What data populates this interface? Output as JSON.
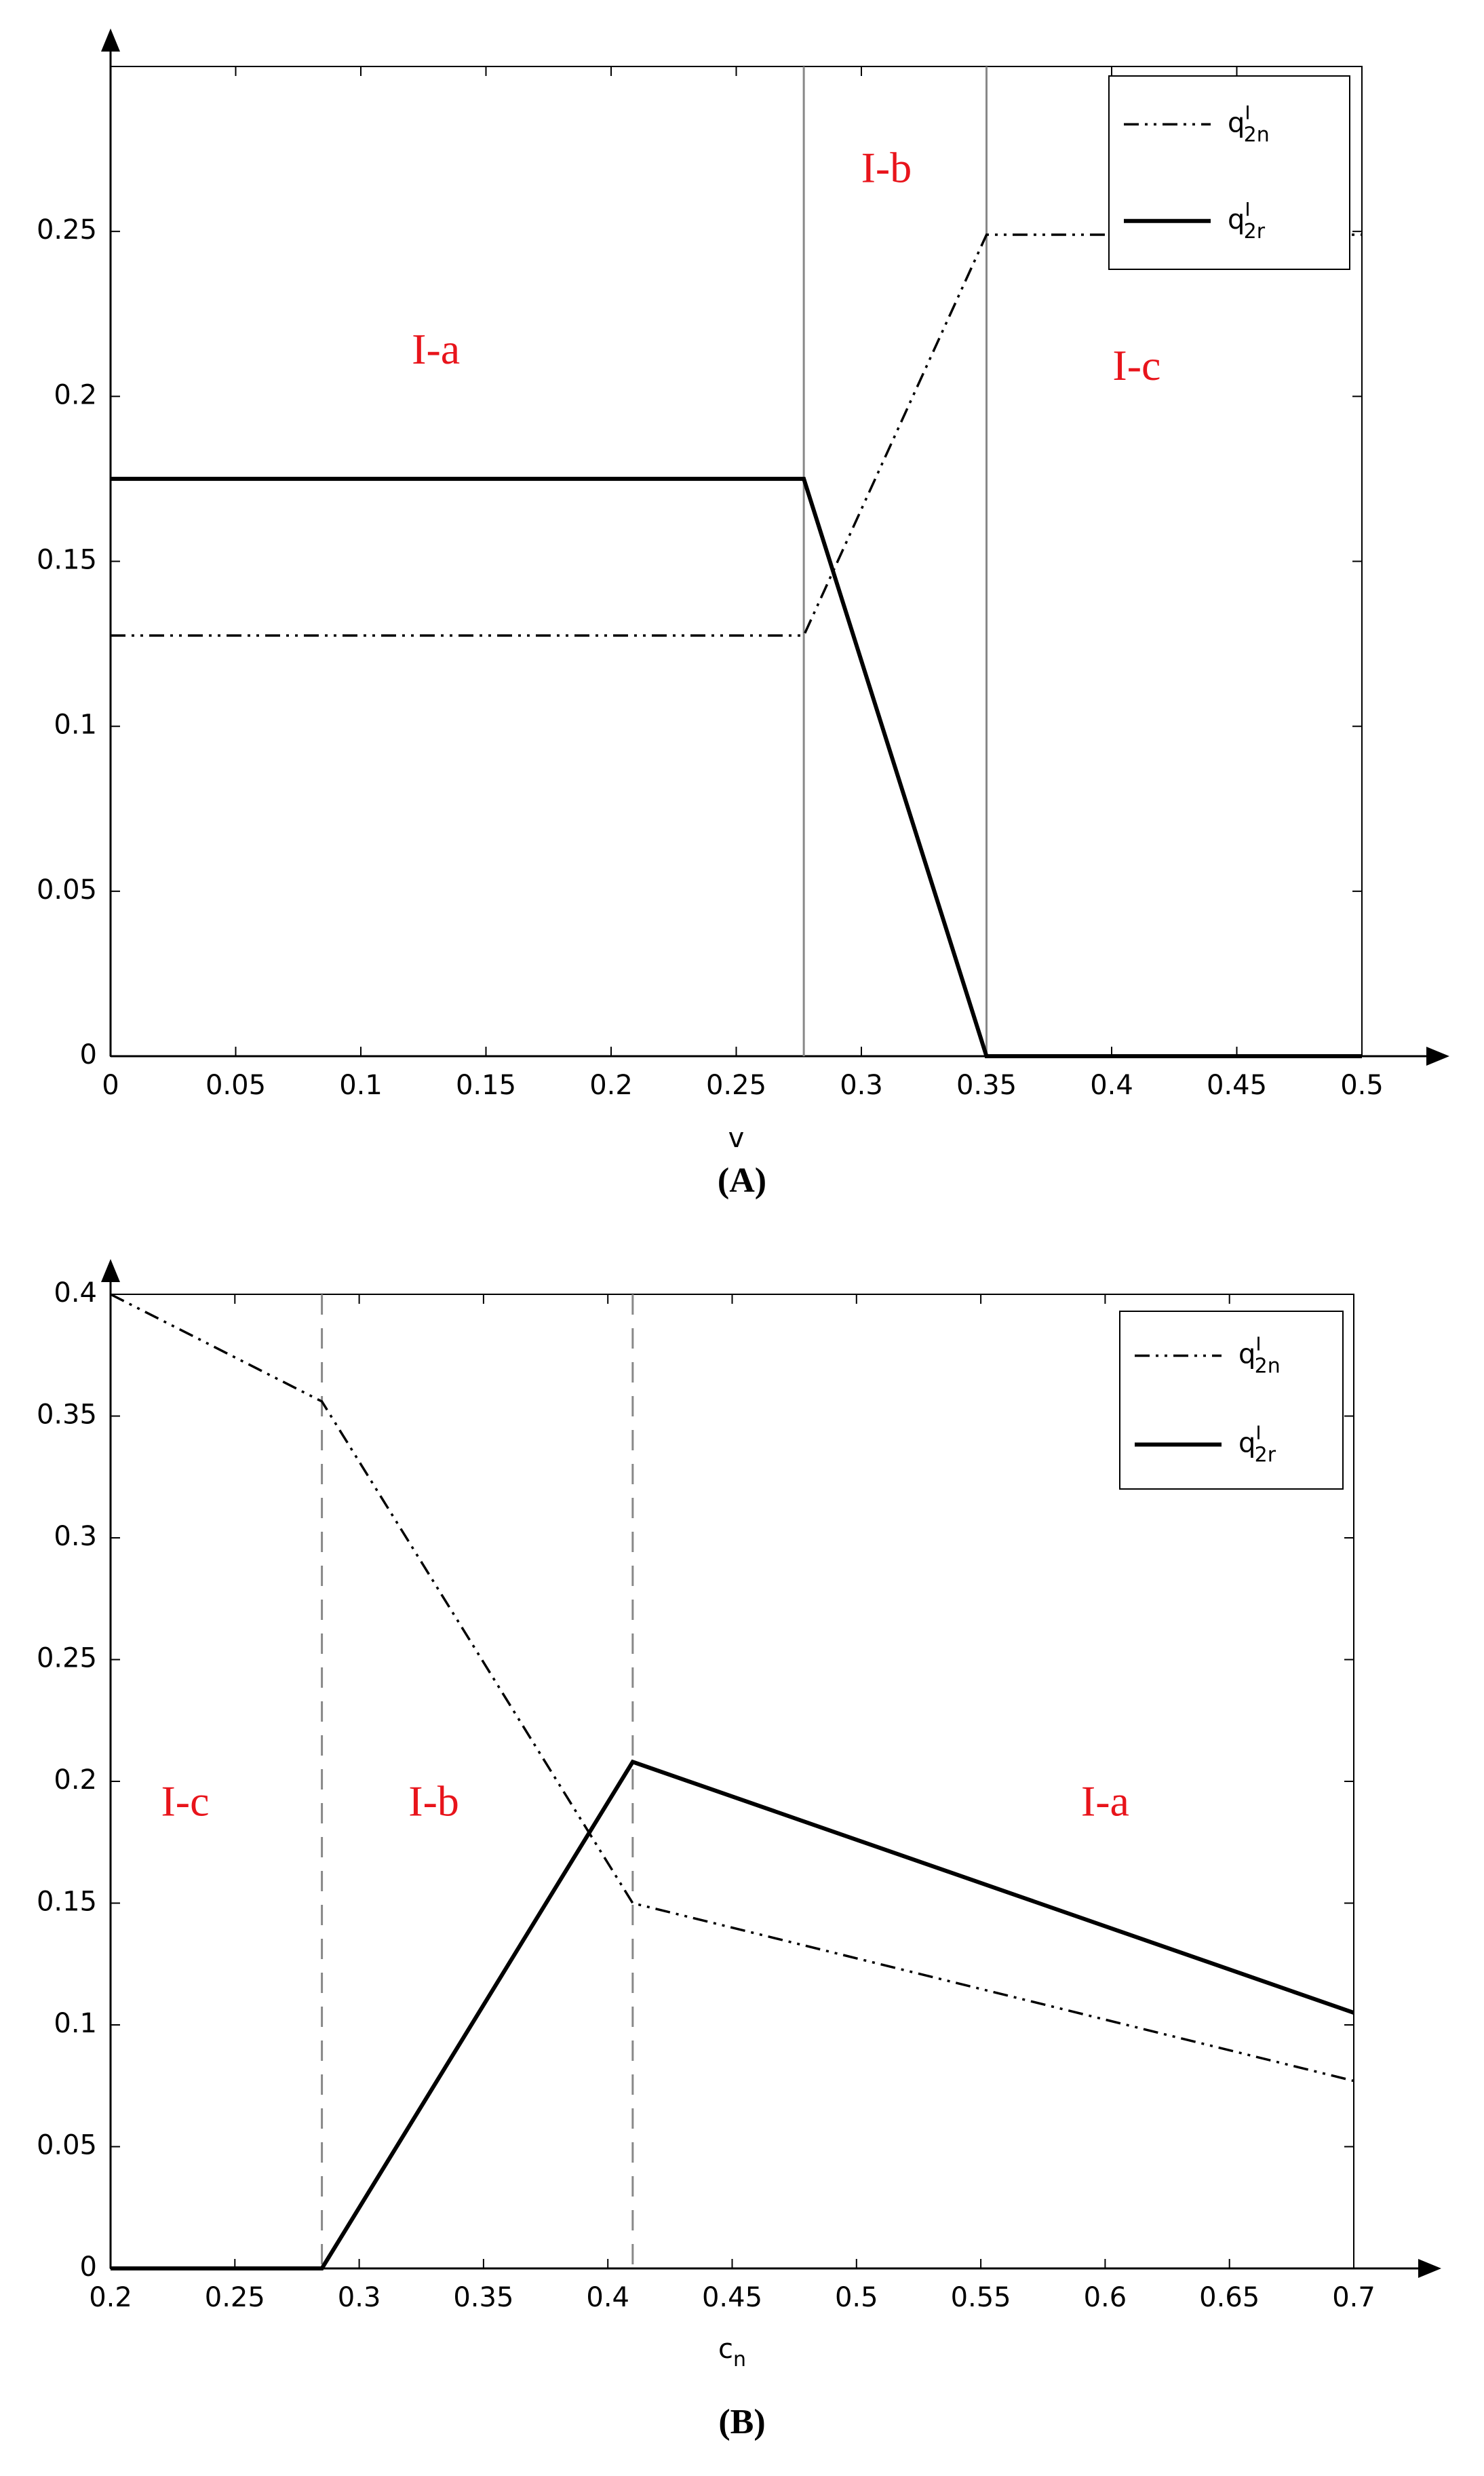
{
  "chart_data": [
    {
      "type": "line",
      "caption": "(A)",
      "xlabel": "v",
      "xlim": [
        0,
        0.5
      ],
      "xticks": [
        0,
        0.05,
        0.1,
        0.15,
        0.2,
        0.25,
        0.3,
        0.35,
        0.4,
        0.45,
        0.5
      ],
      "ylim": [
        0,
        0.3
      ],
      "yticks": [
        0,
        0.05,
        0.1,
        0.15,
        0.2,
        0.25
      ],
      "vlines": [
        0.277,
        0.35
      ],
      "vline_style": "solid",
      "regions": [
        "I-a",
        "I-b",
        "I-c"
      ],
      "series": [
        {
          "name": "q",
          "superscript": "I",
          "subscript": "2n",
          "linestyle": "dashdot",
          "color": "#000000",
          "x": [
            0,
            0.277,
            0.35,
            0.5
          ],
          "values": [
            0.1275,
            0.1275,
            0.249,
            0.249
          ]
        },
        {
          "name": "q",
          "superscript": "I",
          "subscript": "2r",
          "linestyle": "solid",
          "color": "#000000",
          "x": [
            0,
            0.277,
            0.35,
            0.5
          ],
          "values": [
            0.175,
            0.175,
            0,
            0
          ]
        }
      ]
    },
    {
      "type": "line",
      "caption": "(B)",
      "xlabel": "c",
      "xlabel_subscript": "n",
      "xlim": [
        0.2,
        0.7
      ],
      "xticks": [
        0.2,
        0.25,
        0.3,
        0.35,
        0.4,
        0.45,
        0.5,
        0.55,
        0.6,
        0.65,
        0.7
      ],
      "ylim": [
        0,
        0.4
      ],
      "yticks": [
        0,
        0.05,
        0.1,
        0.15,
        0.2,
        0.25,
        0.3,
        0.35,
        0.4
      ],
      "vlines": [
        0.285,
        0.41
      ],
      "vline_style": "dashed",
      "regions": [
        "I-c",
        "I-b",
        "I-a"
      ],
      "series": [
        {
          "name": "q",
          "superscript": "I",
          "subscript": "2n",
          "linestyle": "dashdot",
          "color": "#000000",
          "x": [
            0.2,
            0.285,
            0.41,
            0.7
          ],
          "values": [
            0.4,
            0.356,
            0.15,
            0.077
          ]
        },
        {
          "name": "q",
          "superscript": "I",
          "subscript": "2r",
          "linestyle": "solid",
          "color": "#000000",
          "x": [
            0.2,
            0.285,
            0.41,
            0.7
          ],
          "values": [
            0,
            0,
            0.208,
            0.105
          ]
        }
      ]
    }
  ]
}
